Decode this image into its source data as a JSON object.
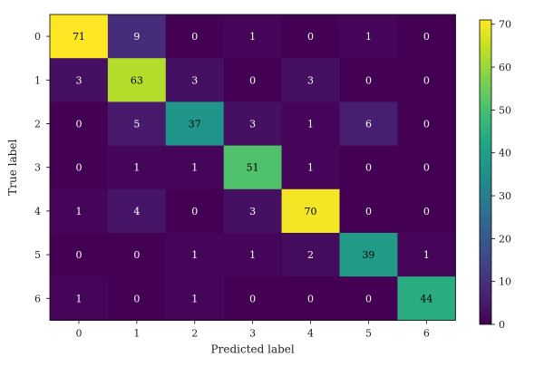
{
  "chart_data": {
    "type": "heatmap",
    "title": "",
    "xlabel": "Predicted label",
    "ylabel": "True label",
    "x_categories": [
      "0",
      "1",
      "2",
      "3",
      "4",
      "5",
      "6"
    ],
    "y_categories": [
      "0",
      "1",
      "2",
      "3",
      "4",
      "5",
      "6"
    ],
    "values": [
      [
        71,
        9,
        0,
        1,
        0,
        1,
        0
      ],
      [
        3,
        63,
        3,
        0,
        3,
        0,
        0
      ],
      [
        0,
        5,
        37,
        3,
        1,
        6,
        0
      ],
      [
        0,
        1,
        1,
        51,
        1,
        0,
        0
      ],
      [
        1,
        4,
        0,
        3,
        70,
        0,
        0
      ],
      [
        0,
        0,
        1,
        1,
        2,
        39,
        1
      ],
      [
        1,
        0,
        1,
        0,
        0,
        0,
        44
      ]
    ],
    "colormap": "viridis",
    "value_range": [
      0,
      71
    ],
    "colorbar": {
      "ticks": [
        0,
        10,
        20,
        30,
        40,
        50,
        60,
        70
      ],
      "tick_labels": [
        "0",
        "10",
        "20",
        "30",
        "40",
        "50",
        "60",
        "70"
      ],
      "placement": "right"
    },
    "text_colors": {
      "on_dark": "#ffffff",
      "on_light": "#000000"
    }
  }
}
